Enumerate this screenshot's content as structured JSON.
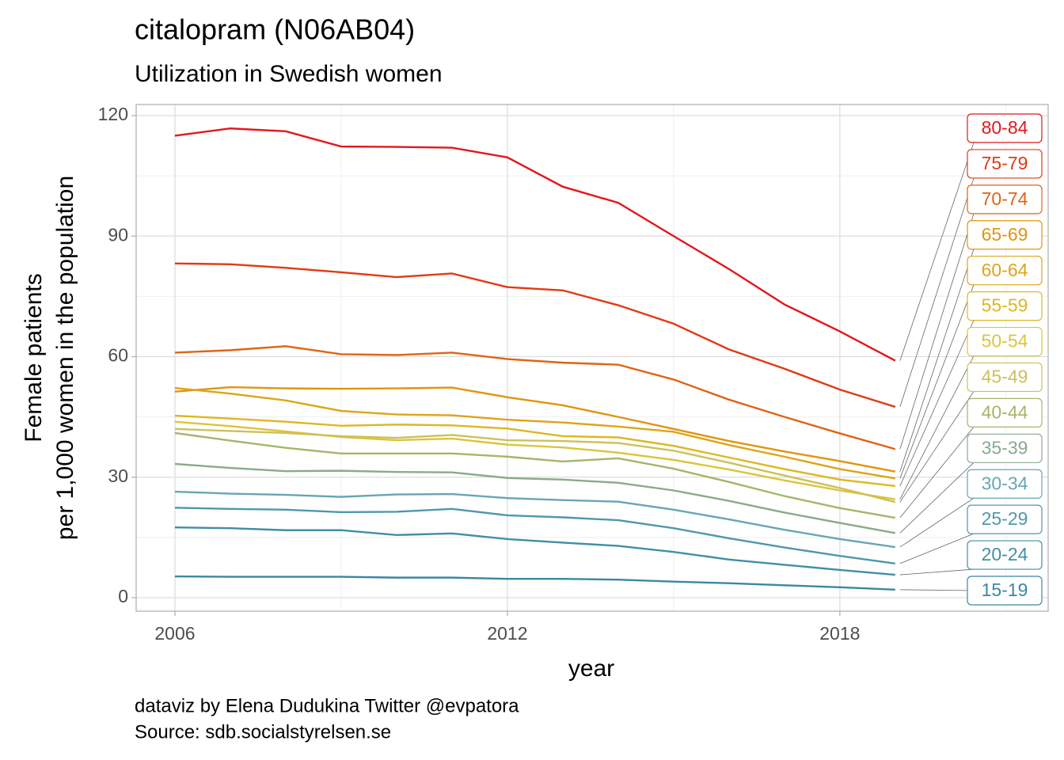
{
  "chart_data": {
    "type": "line",
    "title": "citalopram (N06AB04)",
    "subtitle": "Utilization in Swedish women",
    "xlabel": "year",
    "ylabel": [
      "Female patients",
      "per 1,000 women in the population"
    ],
    "caption": [
      "dataviz by Elena Dudukina Twitter @evpatora",
      "Source: sdb.socialstyrelsen.se"
    ],
    "x": [
      2006,
      2007,
      2008,
      2009,
      2010,
      2011,
      2012,
      2013,
      2014,
      2015,
      2016,
      2017,
      2018,
      2019
    ],
    "xlim": [
      2005.3,
      2021.76
    ],
    "xticks": [
      2006,
      2012,
      2018
    ],
    "ylim": [
      -3.35,
      122.76
    ],
    "yticks": [
      0,
      30,
      60,
      90,
      120
    ],
    "grid": true,
    "series": [
      {
        "name": "80-84",
        "color": "#e4161b",
        "values": [
          115,
          116.8,
          116.1,
          112.3,
          112.2,
          112,
          109.6,
          102.3,
          98.3,
          90,
          81.8,
          73,
          66.3,
          59
        ]
      },
      {
        "name": "75-79",
        "color": "#e03a14",
        "values": [
          83.2,
          83,
          82.1,
          81,
          79.8,
          80.7,
          77.3,
          76.5,
          72.8,
          68.2,
          61.8,
          57,
          51.8,
          47.5
        ]
      },
      {
        "name": "70-74",
        "color": "#df6414",
        "values": [
          61,
          61.6,
          62.6,
          60.6,
          60.4,
          61,
          59.4,
          58.5,
          58,
          54.3,
          49.3,
          45,
          40.9,
          37
        ]
      },
      {
        "name": "65-69",
        "color": "#e0950f",
        "values": [
          51.3,
          52.4,
          52.1,
          52,
          52.1,
          52.3,
          49.9,
          47.9,
          45,
          42,
          39,
          36.4,
          34,
          31.4
        ]
      },
      {
        "name": "60-64",
        "color": "#dea417",
        "values": [
          52.2,
          50.8,
          49.1,
          46.5,
          45.6,
          45.4,
          44.3,
          43.6,
          42.6,
          41.3,
          38,
          35.1,
          32,
          29.7
        ]
      },
      {
        "name": "55-59",
        "color": "#ddb722",
        "values": [
          45.3,
          44.6,
          43.8,
          42.8,
          43.1,
          42.9,
          42.1,
          40.2,
          39.9,
          37.8,
          34.9,
          32,
          29.4,
          27.8
        ]
      },
      {
        "name": "50-54",
        "color": "#dcc43a",
        "values": [
          43.8,
          42.7,
          41.4,
          40,
          39.2,
          39.6,
          38.1,
          37.4,
          36.1,
          34.3,
          31.9,
          29.2,
          26.7,
          24.5
        ]
      },
      {
        "name": "45-49",
        "color": "#cdc05a",
        "values": [
          42,
          41.5,
          41,
          40.2,
          39.8,
          40.5,
          39.2,
          39,
          38.5,
          36.6,
          33.6,
          30.4,
          27.3,
          23.8
        ]
      },
      {
        "name": "40-44",
        "color": "#a8b46a",
        "values": [
          41,
          39.1,
          37.3,
          35.9,
          35.9,
          35.9,
          35.1,
          33.9,
          34.7,
          32.1,
          28.8,
          25.3,
          22.3,
          19.9
        ]
      },
      {
        "name": "35-39",
        "color": "#8aaa8c",
        "values": [
          33.3,
          32.3,
          31.5,
          31.6,
          31.3,
          31.2,
          29.8,
          29.4,
          28.6,
          26.7,
          24.1,
          21.2,
          18.6,
          16.1
        ]
      },
      {
        "name": "30-34",
        "color": "#68a5b5",
        "values": [
          26.4,
          25.9,
          25.6,
          25.1,
          25.7,
          25.8,
          24.8,
          24.3,
          23.9,
          21.9,
          19.5,
          16.9,
          14.6,
          12.6
        ]
      },
      {
        "name": "25-29",
        "color": "#4e98ab",
        "values": [
          22.4,
          22.1,
          21.9,
          21.3,
          21.4,
          22.1,
          20.5,
          20,
          19.3,
          17.3,
          14.8,
          12.5,
          10.4,
          8.5
        ]
      },
      {
        "name": "20-24",
        "color": "#3f8fa5",
        "values": [
          17.5,
          17.3,
          16.8,
          16.8,
          15.6,
          16,
          14.6,
          13.7,
          12.9,
          11.4,
          9.5,
          8.2,
          6.9,
          5.7
        ]
      },
      {
        "name": "15-19",
        "color": "#3a88a0",
        "values": [
          5.3,
          5.2,
          5.2,
          5.2,
          5,
          5,
          4.7,
          4.7,
          4.5,
          4,
          3.6,
          3.1,
          2.6,
          2
        ]
      }
    ]
  }
}
